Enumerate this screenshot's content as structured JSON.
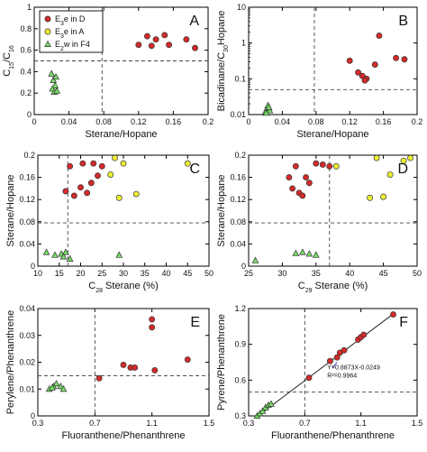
{
  "colors": {
    "red": "#d42a2a",
    "yellow": "#eeee33",
    "green": "#77dd66",
    "ref_line": "#444444",
    "fit_line": "#222222",
    "eq_text": "#1a1ac0"
  },
  "legend": [
    {
      "marker": "circle",
      "color": "#d42a2a",
      "parts": [
        [
          "E",
          "normal"
        ],
        [
          "3",
          "sub"
        ],
        [
          "e in D",
          "normal"
        ]
      ]
    },
    {
      "marker": "circle",
      "color": "#eeee33",
      "parts": [
        [
          "E",
          "normal"
        ],
        [
          "3",
          "sub"
        ],
        [
          "e in A",
          "normal"
        ]
      ]
    },
    {
      "marker": "triangle",
      "color": "#77dd66",
      "parts": [
        [
          "E",
          "normal"
        ],
        [
          "2",
          "sub"
        ],
        [
          "w in F4",
          "normal"
        ]
      ]
    }
  ],
  "chart_data": [
    {
      "type": "scatter",
      "panel_label": "A",
      "xlabel": [
        [
          "Sterane/Hopane",
          "normal"
        ]
      ],
      "ylabel": [
        [
          "C",
          "normal"
        ],
        [
          "15",
          "sub"
        ],
        [
          "/C",
          "normal"
        ],
        [
          "16",
          "sub"
        ]
      ],
      "xlim": [
        0,
        0.2
      ],
      "ylim": [
        0,
        1
      ],
      "yscale": "linear",
      "xticks": [
        "0",
        "0.04",
        "0.08",
        "0.12",
        "0.16",
        "0.2"
      ],
      "yticks": [
        "0",
        "0.2",
        "0.4",
        "0.6",
        "0.8",
        "1"
      ],
      "ref_x": 0.078,
      "ref_y": 0.5,
      "series": [
        {
          "legend_index": 0,
          "marker": "circle",
          "color": "#d42a2a",
          "x": [
            0.12,
            0.13,
            0.135,
            0.14,
            0.15,
            0.155,
            0.175,
            0.185
          ],
          "y": [
            0.65,
            0.73,
            0.64,
            0.7,
            0.74,
            0.65,
            0.7,
            0.62
          ]
        },
        {
          "legend_index": 2,
          "marker": "triangle",
          "color": "#77dd66",
          "x": [
            0.02,
            0.022,
            0.025,
            0.024,
            0.021,
            0.023,
            0.026
          ],
          "y": [
            0.38,
            0.32,
            0.35,
            0.27,
            0.24,
            0.21,
            0.22
          ]
        }
      ]
    },
    {
      "type": "scatter",
      "panel_label": "B",
      "xlabel": [
        [
          "Sterane/Hopane",
          "normal"
        ]
      ],
      "ylabel": [
        [
          "Bicadinane/C",
          "normal"
        ],
        [
          "30",
          "sub"
        ],
        [
          "Hopane",
          "normal"
        ]
      ],
      "xlim": [
        0,
        0.2
      ],
      "ylim": [
        0.01,
        10
      ],
      "yscale": "log",
      "xticks": [
        "0",
        "0.04",
        "0.08",
        "0.12",
        "0.16",
        "0.2"
      ],
      "yticks": [
        "0.01",
        "0.1",
        "1",
        "10"
      ],
      "ref_x": 0.078,
      "ref_y": 0.05,
      "series": [
        {
          "legend_index": 0,
          "marker": "circle",
          "color": "#d42a2a",
          "x": [
            0.12,
            0.13,
            0.135,
            0.14,
            0.15,
            0.155,
            0.175,
            0.185,
            0.138
          ],
          "y": [
            0.32,
            0.15,
            0.12,
            0.1,
            0.25,
            1.6,
            0.38,
            0.35,
            0.09
          ]
        },
        {
          "legend_index": 2,
          "marker": "triangle",
          "color": "#77dd66",
          "x": [
            0.02,
            0.022,
            0.023,
            0.025,
            0.021,
            0.024
          ],
          "y": [
            0.012,
            0.015,
            0.018,
            0.013,
            0.011,
            0.016
          ]
        }
      ]
    },
    {
      "type": "scatter",
      "panel_label": "C",
      "xlabel": [
        [
          "C",
          "normal"
        ],
        [
          "28",
          "sub"
        ],
        [
          " Sterane (%)",
          "normal"
        ]
      ],
      "ylabel": [
        [
          "Sterane/Hopane",
          "normal"
        ]
      ],
      "xlim": [
        10,
        50
      ],
      "ylim": [
        0,
        0.2
      ],
      "yscale": "linear",
      "xticks": [
        "10",
        "15",
        "20",
        "25",
        "30",
        "35",
        "40",
        "45",
        "50"
      ],
      "yticks": [
        "0",
        "0.04",
        "0.08",
        "0.12",
        "0.16",
        "0.2"
      ],
      "ref_x": 17,
      "ref_y": 0.078,
      "series": [
        {
          "legend_index": 0,
          "marker": "circle",
          "color": "#d42a2a",
          "x": [
            16.5,
            17.5,
            18.5,
            20,
            20.5,
            21.5,
            22.5,
            23,
            24,
            25
          ],
          "y": [
            0.135,
            0.18,
            0.127,
            0.142,
            0.185,
            0.132,
            0.15,
            0.185,
            0.163,
            0.18
          ]
        },
        {
          "legend_index": 1,
          "marker": "circle",
          "color": "#eeee33",
          "x": [
            27,
            28,
            29,
            30,
            33,
            45
          ],
          "y": [
            0.165,
            0.195,
            0.123,
            0.185,
            0.13,
            0.185
          ]
        },
        {
          "legend_index": 2,
          "marker": "triangle",
          "color": "#77dd66",
          "x": [
            12,
            14,
            15.5,
            16.5,
            16,
            17.5,
            29
          ],
          "y": [
            0.025,
            0.02,
            0.022,
            0.025,
            0.017,
            0.013,
            0.02
          ]
        }
      ]
    },
    {
      "type": "scatter",
      "panel_label": "D",
      "xlabel": [
        [
          "C",
          "normal"
        ],
        [
          "29",
          "sub"
        ],
        [
          " Sterane (%)",
          "normal"
        ]
      ],
      "ylabel": [
        [
          "Sterane/Hopane",
          "normal"
        ]
      ],
      "xlim": [
        25,
        50
      ],
      "ylim": [
        0,
        0.2
      ],
      "yscale": "linear",
      "xticks": [
        "25",
        "30",
        "35",
        "40",
        "45",
        "50"
      ],
      "yticks": [
        "0",
        "0.04",
        "0.08",
        "0.12",
        "0.16",
        "0.2"
      ],
      "ref_x": 37,
      "ref_y": 0.078,
      "series": [
        {
          "legend_index": 0,
          "marker": "circle",
          "color": "#d42a2a",
          "x": [
            31,
            31.5,
            32,
            32.5,
            33,
            33.5,
            34,
            35,
            36,
            37
          ],
          "y": [
            0.16,
            0.14,
            0.18,
            0.132,
            0.127,
            0.16,
            0.15,
            0.185,
            0.183,
            0.18
          ]
        },
        {
          "legend_index": 1,
          "marker": "circle",
          "color": "#eeee33",
          "x": [
            38,
            43,
            44,
            45,
            46,
            48,
            49
          ],
          "y": [
            0.18,
            0.123,
            0.195,
            0.125,
            0.165,
            0.19,
            0.195
          ]
        },
        {
          "legend_index": 2,
          "marker": "triangle",
          "color": "#77dd66",
          "x": [
            26,
            32,
            33,
            34,
            35
          ],
          "y": [
            0.01,
            0.023,
            0.025,
            0.022,
            0.02
          ]
        }
      ]
    },
    {
      "type": "scatter",
      "panel_label": "E",
      "xlabel": [
        [
          "Fluoranthene/Phenanthrene",
          "normal"
        ]
      ],
      "ylabel": [
        [
          "Perylene/Phenanthrene",
          "normal"
        ]
      ],
      "xlim": [
        0.3,
        1.5
      ],
      "ylim": [
        0,
        0.04
      ],
      "yscale": "linear",
      "xticks": [
        "0.3",
        "0.7",
        "1.1",
        "1.5"
      ],
      "yticks": [
        "0",
        "0.01",
        "0.02",
        "0.03",
        "0.04"
      ],
      "ref_x": 0.7,
      "ref_y": 0.015,
      "series": [
        {
          "legend_index": 0,
          "marker": "circle",
          "color": "#d42a2a",
          "x": [
            0.73,
            0.9,
            0.95,
            0.98,
            1.1,
            1.1,
            1.12,
            1.35
          ],
          "y": [
            0.014,
            0.019,
            0.018,
            0.018,
            0.036,
            0.033,
            0.017,
            0.021
          ]
        },
        {
          "legend_index": 2,
          "marker": "triangle",
          "color": "#77dd66",
          "x": [
            0.38,
            0.41,
            0.43,
            0.46,
            0.48,
            0.4
          ],
          "y": [
            0.01,
            0.011,
            0.012,
            0.011,
            0.01,
            0.0105
          ]
        }
      ]
    },
    {
      "type": "scatter",
      "panel_label": "F",
      "xlabel": [
        [
          "Fluoranthene/Phenanthrene",
          "normal"
        ]
      ],
      "ylabel": [
        [
          "Pyrene/Phenanthrene",
          "normal"
        ]
      ],
      "xlim": [
        0.3,
        1.5
      ],
      "ylim": [
        0.3,
        1.2
      ],
      "yscale": "linear",
      "xticks": [
        "0.3",
        "0.7",
        "1.1",
        "1.5"
      ],
      "yticks": [
        "0.3",
        "0.6",
        "0.9",
        "1.2"
      ],
      "ref_x": 0.7,
      "ref_y": 0.5,
      "fit_line": {
        "slope": 0.8873,
        "intercept": -0.0249,
        "x_range": [
          0.36,
          1.33
        ]
      },
      "equation_lines": [
        "Y=0.8873X-0.0249",
        "R²=0.9964"
      ],
      "series": [
        {
          "legend_index": 0,
          "marker": "circle",
          "color": "#d42a2a",
          "x": [
            0.73,
            0.88,
            0.93,
            0.95,
            0.98,
            1.08,
            1.1,
            1.12,
            1.33
          ],
          "y": [
            0.62,
            0.76,
            0.79,
            0.83,
            0.85,
            0.94,
            0.96,
            0.98,
            1.15
          ]
        },
        {
          "legend_index": 2,
          "marker": "triangle",
          "color": "#77dd66",
          "x": [
            0.36,
            0.38,
            0.4,
            0.42,
            0.44,
            0.46
          ],
          "y": [
            0.3,
            0.32,
            0.34,
            0.37,
            0.39,
            0.4
          ]
        }
      ]
    }
  ]
}
